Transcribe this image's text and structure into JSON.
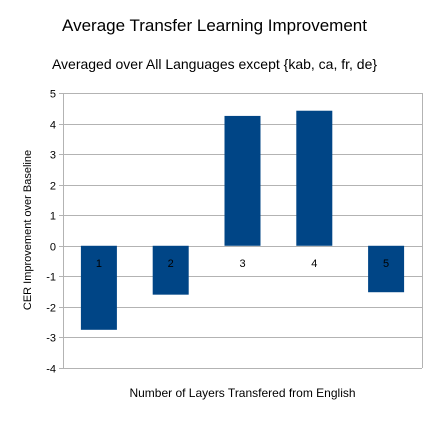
{
  "chart_data": {
    "type": "bar",
    "title": "Average Transfer Learning Improvement",
    "subtitle": "Averaged over All Languages except {kab, ca, fr, de}",
    "xlabel": "Number of Layers Transfered from English",
    "ylabel": "CER Improvement over Baseline",
    "categories": [
      "1",
      "2",
      "3",
      "4",
      "5"
    ],
    "values": [
      -2.75,
      -1.6,
      4.25,
      4.42,
      -1.52
    ],
    "ylim": [
      -4,
      5
    ],
    "yticks": [
      5,
      4,
      3,
      2,
      1,
      0,
      -1,
      -2,
      -3,
      -4
    ],
    "grid": true,
    "legend": "none",
    "bar_color": "#004586",
    "grid_color": "#b3b3b3"
  }
}
